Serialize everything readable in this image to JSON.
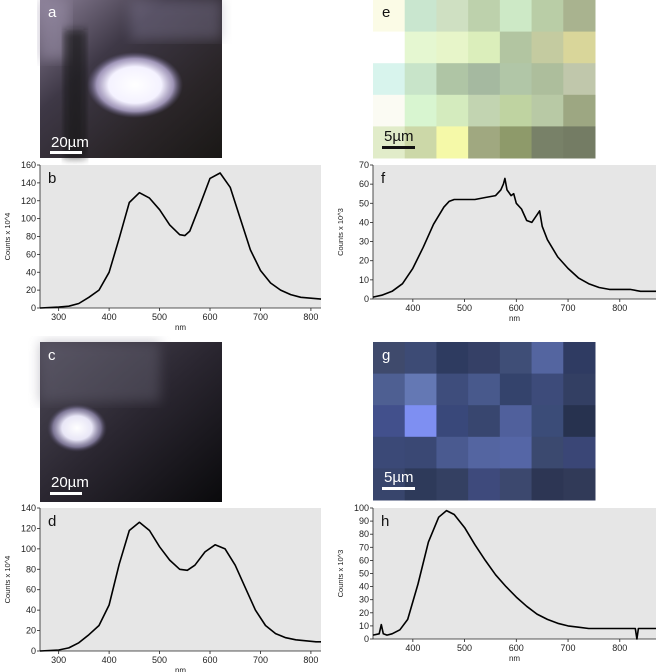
{
  "panels": {
    "a": {
      "label": "a",
      "scalebar": "20µm"
    },
    "c": {
      "label": "c",
      "scalebar": "20µm"
    },
    "e": {
      "label": "e",
      "scalebar": "5µm"
    },
    "g": {
      "label": "g",
      "scalebar": "5µm"
    }
  },
  "grids": {
    "e": {
      "rows": 5,
      "cols": 7,
      "colors": [
        [
          "#fbfbe6",
          "#c9e6cf",
          "#cfe0c2",
          "#bdd1ac",
          "#cde9c6",
          "#b9cda6",
          "#a9b38f"
        ],
        [
          "#ffffff",
          "#e5f7d1",
          "#e7f5c9",
          "#dbeebb",
          "#b2c5a1",
          "#c4cba0",
          "#d9d69a"
        ],
        [
          "#d8f4ed",
          "#c8e4c9",
          "#afc5a5",
          "#a5b9a0",
          "#b1c6a7",
          "#adbe9c",
          "#c0c7ab"
        ],
        [
          "#fbfbf3",
          "#d8f5d0",
          "#d4ebbe",
          "#c2d4b1",
          "#bfd3a1",
          "#b8c9a5",
          "#9da782"
        ],
        [
          "#e1ecc9",
          "#ccd8a8",
          "#f5f9a8",
          "#a0a880",
          "#8e9a6a",
          "#788168",
          "#747c64"
        ]
      ]
    },
    "g": {
      "rows": 5,
      "cols": 7,
      "colors": [
        [
          "#3f4a6c",
          "#3d4b75",
          "#2e3b60",
          "#354066",
          "#3f4e77",
          "#5465a0",
          "#2f3b62"
        ],
        [
          "#4e5f92",
          "#6478b4",
          "#3e4d7c",
          "#48598c",
          "#34436c",
          "#3d4b7a",
          "#333f63"
        ],
        [
          "#42508c",
          "#7e8ff2",
          "#39487a",
          "#38466f",
          "#50609c",
          "#3b4c78",
          "#27324f"
        ],
        [
          "#3b4977",
          "#3a4874",
          "#4a5a90",
          "#5465a1",
          "#5566a6",
          "#3b496f",
          "#3a4676"
        ],
        [
          "#38456c",
          "#2e3a5a",
          "#344062",
          "#3e4a7c",
          "#3c486e",
          "#2d3654",
          "#313a58"
        ]
      ]
    }
  },
  "chart_data": [
    {
      "id": "b",
      "type": "line",
      "label": "b",
      "xlabel": "nm",
      "ylabel": "Counts x 10^4",
      "xlim": [
        263,
        820
      ],
      "ylim": [
        0,
        160
      ],
      "xticks": [
        "300",
        "400",
        "500",
        "600",
        "700",
        "800"
      ],
      "yticks": [
        "0",
        "20",
        "40",
        "60",
        "80",
        "100",
        "120",
        "140",
        "160"
      ],
      "x": [
        263,
        300,
        320,
        340,
        360,
        380,
        400,
        420,
        440,
        460,
        480,
        500,
        520,
        540,
        550,
        560,
        580,
        600,
        620,
        640,
        660,
        680,
        700,
        720,
        740,
        760,
        780,
        800,
        820
      ],
      "y": [
        0,
        1,
        2,
        5,
        12,
        20,
        40,
        78,
        118,
        129,
        123,
        110,
        93,
        82,
        81,
        86,
        115,
        145,
        151,
        135,
        100,
        65,
        42,
        28,
        20,
        15,
        12,
        11,
        10
      ]
    },
    {
      "id": "f",
      "type": "line",
      "label": "f",
      "xlabel": "nm",
      "ylabel": "Counts x 10^3",
      "xlim": [
        323,
        870
      ],
      "ylim": [
        0,
        70
      ],
      "xticks": [
        "400",
        "500",
        "600",
        "700",
        "800"
      ],
      "yticks": [
        "0",
        "10",
        "20",
        "30",
        "40",
        "50",
        "60",
        "70"
      ],
      "x": [
        323,
        340,
        360,
        380,
        400,
        420,
        440,
        460,
        470,
        480,
        500,
        520,
        540,
        560,
        570,
        575,
        578,
        582,
        590,
        595,
        600,
        610,
        620,
        630,
        640,
        645,
        650,
        660,
        680,
        700,
        720,
        740,
        760,
        780,
        800,
        820,
        840,
        870
      ],
      "y": [
        1,
        2,
        4,
        8,
        16,
        27,
        39,
        48,
        51,
        52,
        52,
        52,
        53,
        54,
        57,
        60,
        63,
        57,
        54,
        55,
        50,
        47,
        41,
        40,
        44,
        46,
        38,
        31,
        22,
        16,
        11,
        8,
        6,
        5,
        5,
        5,
        4,
        4
      ]
    },
    {
      "id": "d",
      "type": "line",
      "label": "d",
      "xlabel": "nm",
      "ylabel": "Counts x 10^4",
      "xlim": [
        263,
        820
      ],
      "ylim": [
        0,
        140
      ],
      "xticks": [
        "300",
        "400",
        "500",
        "600",
        "700",
        "800"
      ],
      "yticks": [
        "0",
        "20",
        "40",
        "60",
        "80",
        "100",
        "120",
        "140"
      ],
      "x": [
        263,
        300,
        320,
        340,
        360,
        380,
        400,
        420,
        440,
        460,
        480,
        500,
        520,
        540,
        555,
        570,
        590,
        610,
        630,
        650,
        670,
        690,
        710,
        730,
        750,
        770,
        790,
        810,
        820
      ],
      "y": [
        0,
        1,
        3,
        8,
        16,
        25,
        45,
        85,
        118,
        126,
        118,
        102,
        89,
        80,
        79,
        84,
        97,
        104,
        100,
        84,
        62,
        40,
        25,
        17,
        13,
        11,
        10,
        9,
        9
      ]
    },
    {
      "id": "h",
      "type": "line",
      "label": "h",
      "xlabel": "nm",
      "ylabel": "Counts x 10^3",
      "xlim": [
        323,
        870
      ],
      "ylim": [
        0,
        100
      ],
      "xticks": [
        "400",
        "500",
        "600",
        "700",
        "800"
      ],
      "yticks": [
        "0",
        "10",
        "20",
        "30",
        "40",
        "50",
        "60",
        "70",
        "80",
        "90",
        "100"
      ],
      "x": [
        323,
        335,
        339,
        343,
        350,
        360,
        375,
        390,
        410,
        430,
        450,
        465,
        480,
        500,
        520,
        540,
        560,
        580,
        600,
        620,
        640,
        660,
        680,
        700,
        720,
        740,
        760,
        780,
        800,
        820,
        830,
        833,
        836,
        840,
        850,
        870
      ],
      "y": [
        3,
        4,
        11,
        4,
        3,
        4,
        7,
        15,
        42,
        74,
        93,
        98,
        95,
        85,
        72,
        60,
        49,
        40,
        32,
        25,
        19,
        15,
        12,
        10,
        9,
        8,
        8,
        8,
        8,
        8,
        8,
        0,
        8,
        8,
        8,
        8
      ]
    }
  ]
}
